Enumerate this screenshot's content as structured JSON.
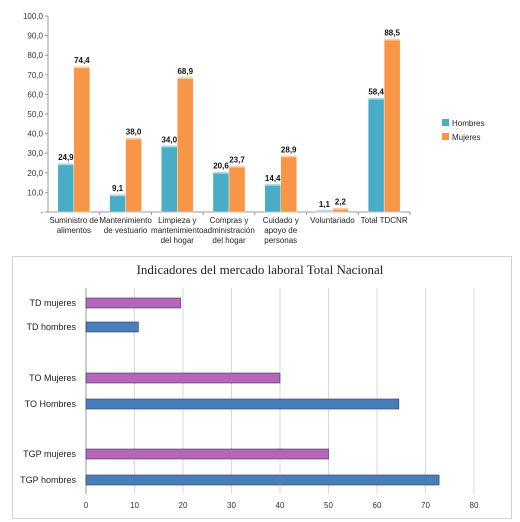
{
  "chart_data": [
    {
      "type": "bar",
      "categories": [
        [
          "Suministro de",
          "alimentos"
        ],
        [
          "Mantenimiento",
          "de vestuario"
        ],
        [
          "Limpieza y",
          "mantenimiento",
          "del hogar"
        ],
        [
          "Compras y",
          "administración",
          "del hogar"
        ],
        [
          "Cuidado y",
          "apoyo de",
          "personas"
        ],
        [
          "Voluntariado"
        ],
        [
          "Total TDCNR"
        ]
      ],
      "series": [
        {
          "name": "Hombres",
          "values": [
            24.9,
            9.1,
            34.0,
            20.6,
            14.4,
            1.1,
            58.4
          ],
          "labels": [
            "24,9",
            "9,1",
            "34,0",
            "20,6",
            "14,4",
            "1,1",
            "58,4"
          ],
          "color": "#4bacc6"
        },
        {
          "name": "Mujeres",
          "values": [
            74.4,
            38.0,
            68.9,
            23.7,
            28.9,
            2.2,
            88.5
          ],
          "labels": [
            "74,4",
            "38,0",
            "68,9",
            "23,7",
            "28,9",
            "2,2",
            "88,5"
          ],
          "color": "#f79646"
        }
      ],
      "yticks": [
        "-",
        "10,0",
        "20,0",
        "30,0",
        "40,0",
        "50,0",
        "60,0",
        "70,0",
        "80,0",
        "90,0",
        "100,0"
      ],
      "ylim": [
        0,
        100
      ],
      "grid": false,
      "legend_position": "right"
    },
    {
      "type": "bar",
      "orientation": "horizontal",
      "title": "Indicadores del mercado laboral Total Nacional",
      "categories": [
        "TD mujeres",
        "TD  hombres",
        "TO Mujeres",
        "TO Hombres",
        "TGP mujeres",
        "TGP hombres"
      ],
      "values": [
        19.5,
        10.8,
        40,
        64.5,
        50,
        72.8
      ],
      "colors": [
        "#b566b8",
        "#4a7ebb",
        "#b566b8",
        "#4a7ebb",
        "#b566b8",
        "#4a7ebb"
      ],
      "xticks": [
        "0",
        "10",
        "20",
        "30",
        "40",
        "50",
        "60",
        "70",
        "80"
      ],
      "xlim": [
        0,
        80
      ],
      "grid": true
    }
  ]
}
